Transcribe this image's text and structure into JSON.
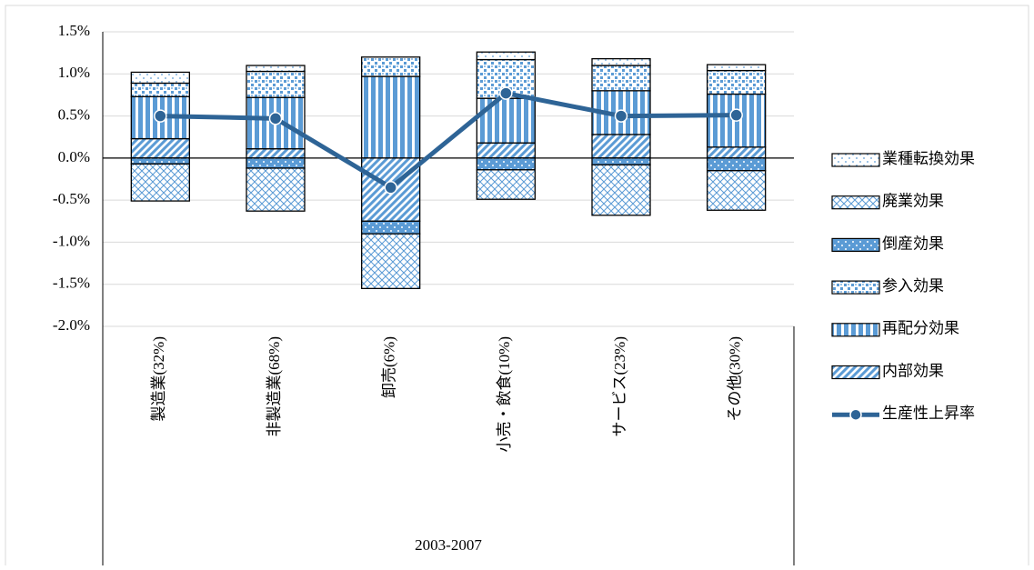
{
  "chart_data": {
    "type": "bar",
    "categories": [
      "製造業(32%)",
      "非製造業(68%)",
      "卸売(6%)",
      "小売・飲食(10%)",
      "サービス(23%)",
      "その他(30%)"
    ],
    "group_label": "2003-2007",
    "series": [
      {
        "name": "内部効果",
        "color": "#5b9bd5",
        "values": [
          0.23,
          0.11,
          -0.75,
          0.18,
          0.28,
          0.13
        ]
      },
      {
        "name": "再配分効果",
        "color": "#5b9bd5",
        "values": [
          0.5,
          0.61,
          0.97,
          0.53,
          0.52,
          0.63
        ]
      },
      {
        "name": "参入効果",
        "color": "#5b9bd5",
        "values": [
          0.16,
          0.31,
          0.23,
          0.46,
          0.3,
          0.28
        ]
      },
      {
        "name": "倒産効果",
        "color": "#5b9bd5",
        "values": [
          -0.07,
          -0.12,
          -0.15,
          -0.14,
          -0.08,
          -0.15
        ]
      },
      {
        "name": "廃業効果",
        "color": "#5b9bd5",
        "values": [
          -0.44,
          -0.51,
          -0.65,
          -0.35,
          -0.6,
          -0.47
        ]
      },
      {
        "name": "業種転換効果",
        "color": "#5b9bd5",
        "values": [
          0.13,
          0.07,
          0,
          0.09,
          0.08,
          0.07
        ]
      },
      {
        "name": "生産性上昇率",
        "type": "line",
        "color": "#2e6496",
        "values": [
          0.5,
          0.47,
          -0.35,
          0.77,
          0.5,
          0.51
        ]
      }
    ],
    "ylim": [
      -2.0,
      1.5
    ],
    "yticks": [
      {
        "value": -2.0,
        "label": "-2.0%"
      },
      {
        "value": -1.5,
        "label": "-1.5%"
      },
      {
        "value": -1.0,
        "label": "-1.0%"
      },
      {
        "value": -0.5,
        "label": "-0.5%"
      },
      {
        "value": 0,
        "label": "0.0%"
      },
      {
        "value": 0.5,
        "label": "0.5%"
      },
      {
        "value": 1.0,
        "label": "1.0%"
      },
      {
        "value": 1.5,
        "label": "1.5%"
      }
    ],
    "grid": true,
    "legend": "right"
  }
}
